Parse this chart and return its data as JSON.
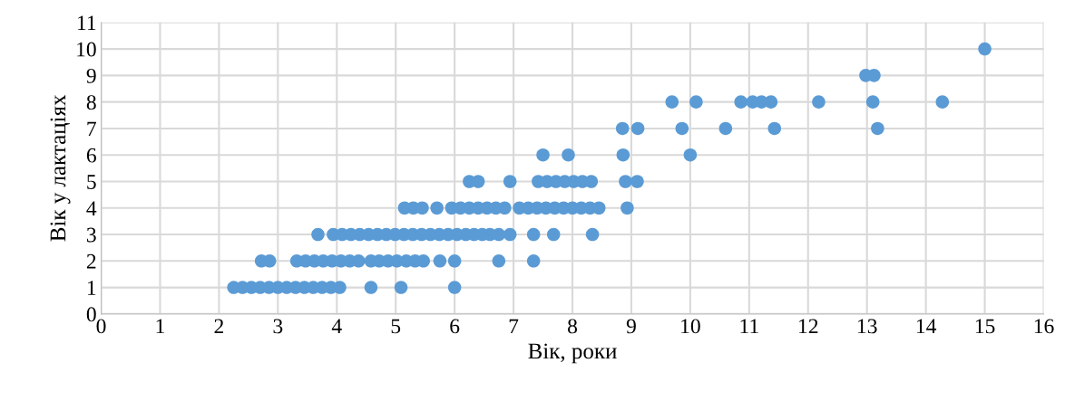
{
  "chart_data": {
    "type": "scatter",
    "xlabel": "Вік, роки",
    "ylabel": "Вік у лактаціях",
    "xlim": [
      0,
      16
    ],
    "xticks": [
      0,
      1,
      2,
      3,
      4,
      5,
      6,
      7,
      8,
      9,
      10,
      11,
      12,
      13,
      14,
      15,
      16
    ],
    "ylim": [
      0,
      11
    ],
    "yticks": [
      0,
      1,
      2,
      3,
      4,
      5,
      6,
      7,
      8,
      9,
      10,
      11
    ],
    "grid": true,
    "marker": "circle",
    "series": [
      {
        "color": "#5b9bd5",
        "x": [
          2.25,
          2.4,
          2.55,
          2.7,
          2.85,
          3.0,
          3.15,
          3.3,
          3.45,
          3.6,
          3.75,
          3.9,
          4.05,
          4.58,
          5.09,
          6.0,
          2.72,
          2.86,
          3.32,
          3.47,
          3.62,
          3.77,
          3.92,
          4.07,
          4.22,
          4.37,
          4.58,
          4.72,
          4.87,
          5.02,
          5.18,
          5.33,
          5.47,
          5.75,
          6.0,
          6.75,
          7.34,
          3.68,
          3.94,
          4.09,
          4.24,
          4.39,
          4.54,
          4.69,
          4.84,
          4.99,
          5.14,
          5.29,
          5.44,
          5.59,
          5.74,
          5.89,
          6.04,
          6.19,
          6.33,
          6.47,
          6.6,
          6.75,
          6.94,
          7.34,
          7.68,
          8.34,
          5.15,
          5.3,
          5.45,
          5.7,
          5.95,
          6.1,
          6.25,
          6.4,
          6.55,
          6.7,
          6.85,
          7.1,
          7.25,
          7.4,
          7.55,
          7.7,
          7.85,
          8.0,
          8.15,
          8.3,
          8.45,
          8.93,
          6.25,
          6.4,
          6.94,
          7.42,
          7.57,
          7.72,
          7.87,
          8.02,
          8.17,
          8.32,
          8.9,
          9.1,
          7.5,
          7.93,
          8.86,
          10.0,
          8.85,
          9.11,
          9.86,
          10.6,
          11.43,
          13.18,
          9.69,
          10.1,
          10.86,
          11.06,
          11.21,
          11.37,
          12.18,
          13.1,
          14.28,
          12.98,
          13.12,
          15.0
        ],
        "values": [
          1,
          1,
          1,
          1,
          1,
          1,
          1,
          1,
          1,
          1,
          1,
          1,
          1,
          1,
          1,
          1,
          2,
          2,
          2,
          2,
          2,
          2,
          2,
          2,
          2,
          2,
          2,
          2,
          2,
          2,
          2,
          2,
          2,
          2,
          2,
          2,
          2,
          3,
          3,
          3,
          3,
          3,
          3,
          3,
          3,
          3,
          3,
          3,
          3,
          3,
          3,
          3,
          3,
          3,
          3,
          3,
          3,
          3,
          3,
          3,
          3,
          3,
          4,
          4,
          4,
          4,
          4,
          4,
          4,
          4,
          4,
          4,
          4,
          4,
          4,
          4,
          4,
          4,
          4,
          4,
          4,
          4,
          4,
          4,
          5,
          5,
          5,
          5,
          5,
          5,
          5,
          5,
          5,
          5,
          5,
          5,
          6,
          6,
          6,
          6,
          7,
          7,
          7,
          7,
          7,
          7,
          8,
          8,
          8,
          8,
          8,
          8,
          8,
          8,
          8,
          9,
          9,
          10
        ]
      }
    ]
  }
}
